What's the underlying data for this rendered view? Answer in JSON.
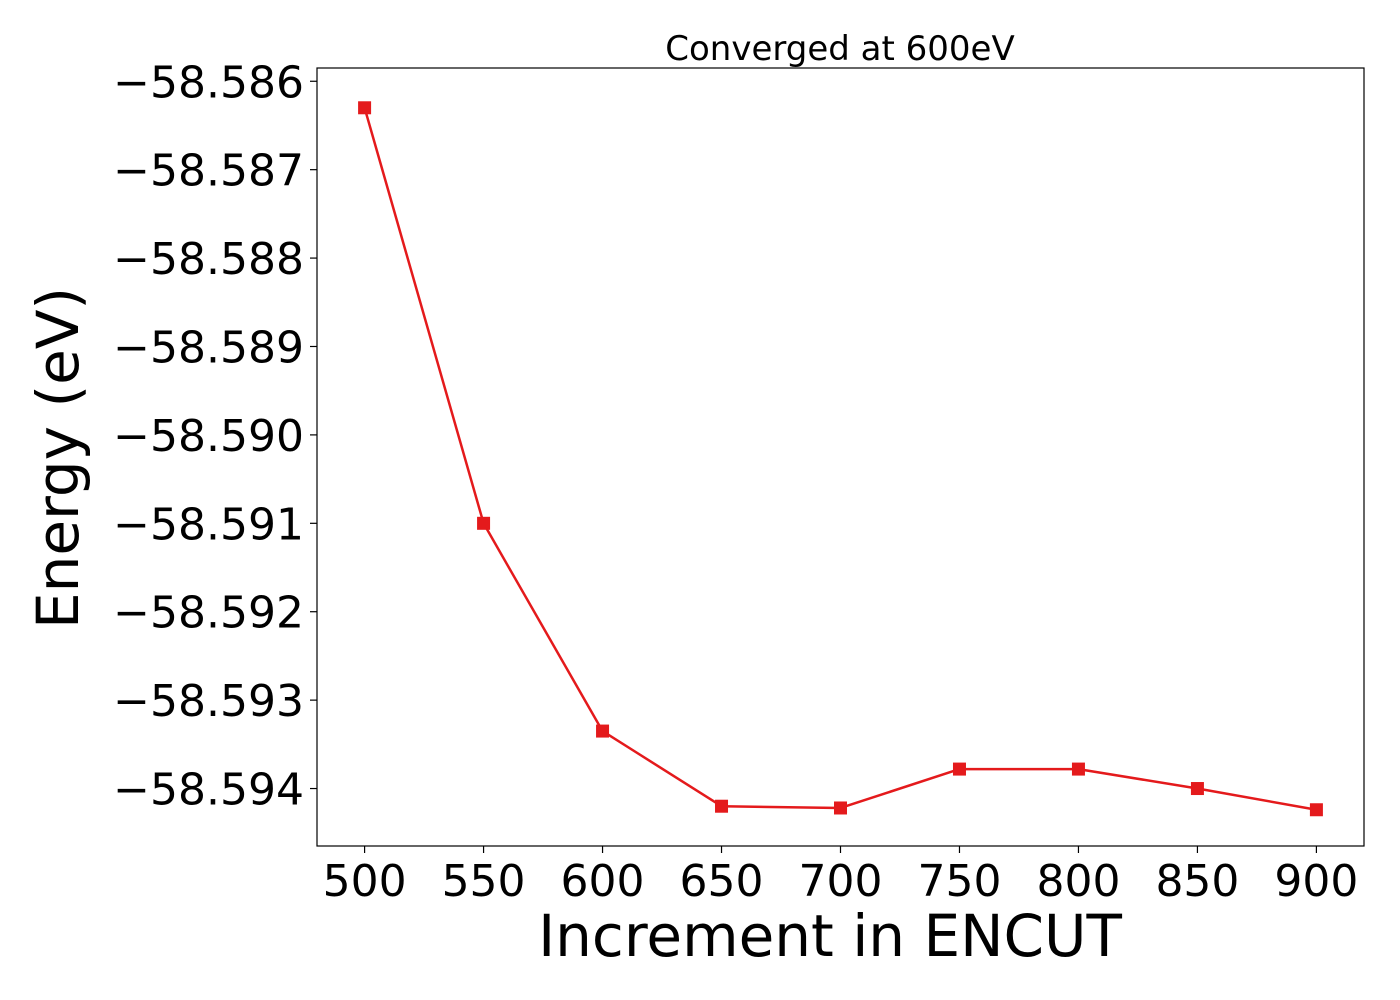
{
  "chart_data": {
    "type": "line",
    "title": "Converged at 600eV",
    "xlabel": "Increment in ENCUT",
    "ylabel": "Energy (eV)",
    "x": [
      500,
      550,
      600,
      650,
      700,
      750,
      800,
      850,
      900
    ],
    "series": [
      {
        "values": [
          -58.5863,
          -58.591,
          -58.59335,
          -58.5942,
          -58.59422,
          -58.59378,
          -58.59378,
          -58.594,
          -58.59424
        ]
      }
    ],
    "xlim": [
      480,
      920
    ],
    "ylim": [
      -58.59465,
      -58.58585
    ],
    "xticks": [
      500,
      550,
      600,
      650,
      700,
      750,
      800,
      850,
      900
    ],
    "xtick_labels": [
      "500",
      "550",
      "600",
      "650",
      "700",
      "750",
      "800",
      "850",
      "900"
    ],
    "yticks": [
      -58.586,
      -58.587,
      -58.588,
      -58.589,
      -58.59,
      -58.591,
      -58.592,
      -58.593,
      -58.594
    ],
    "ytick_labels": [
      "−58.586",
      "−58.587",
      "−58.588",
      "−58.589",
      "−58.590",
      "−58.591",
      "−58.592",
      "−58.593",
      "−58.594"
    ],
    "grid": false,
    "legend": "none",
    "colors": {
      "series": "#e41a1c",
      "axes": "#000000"
    },
    "marker": "square"
  }
}
